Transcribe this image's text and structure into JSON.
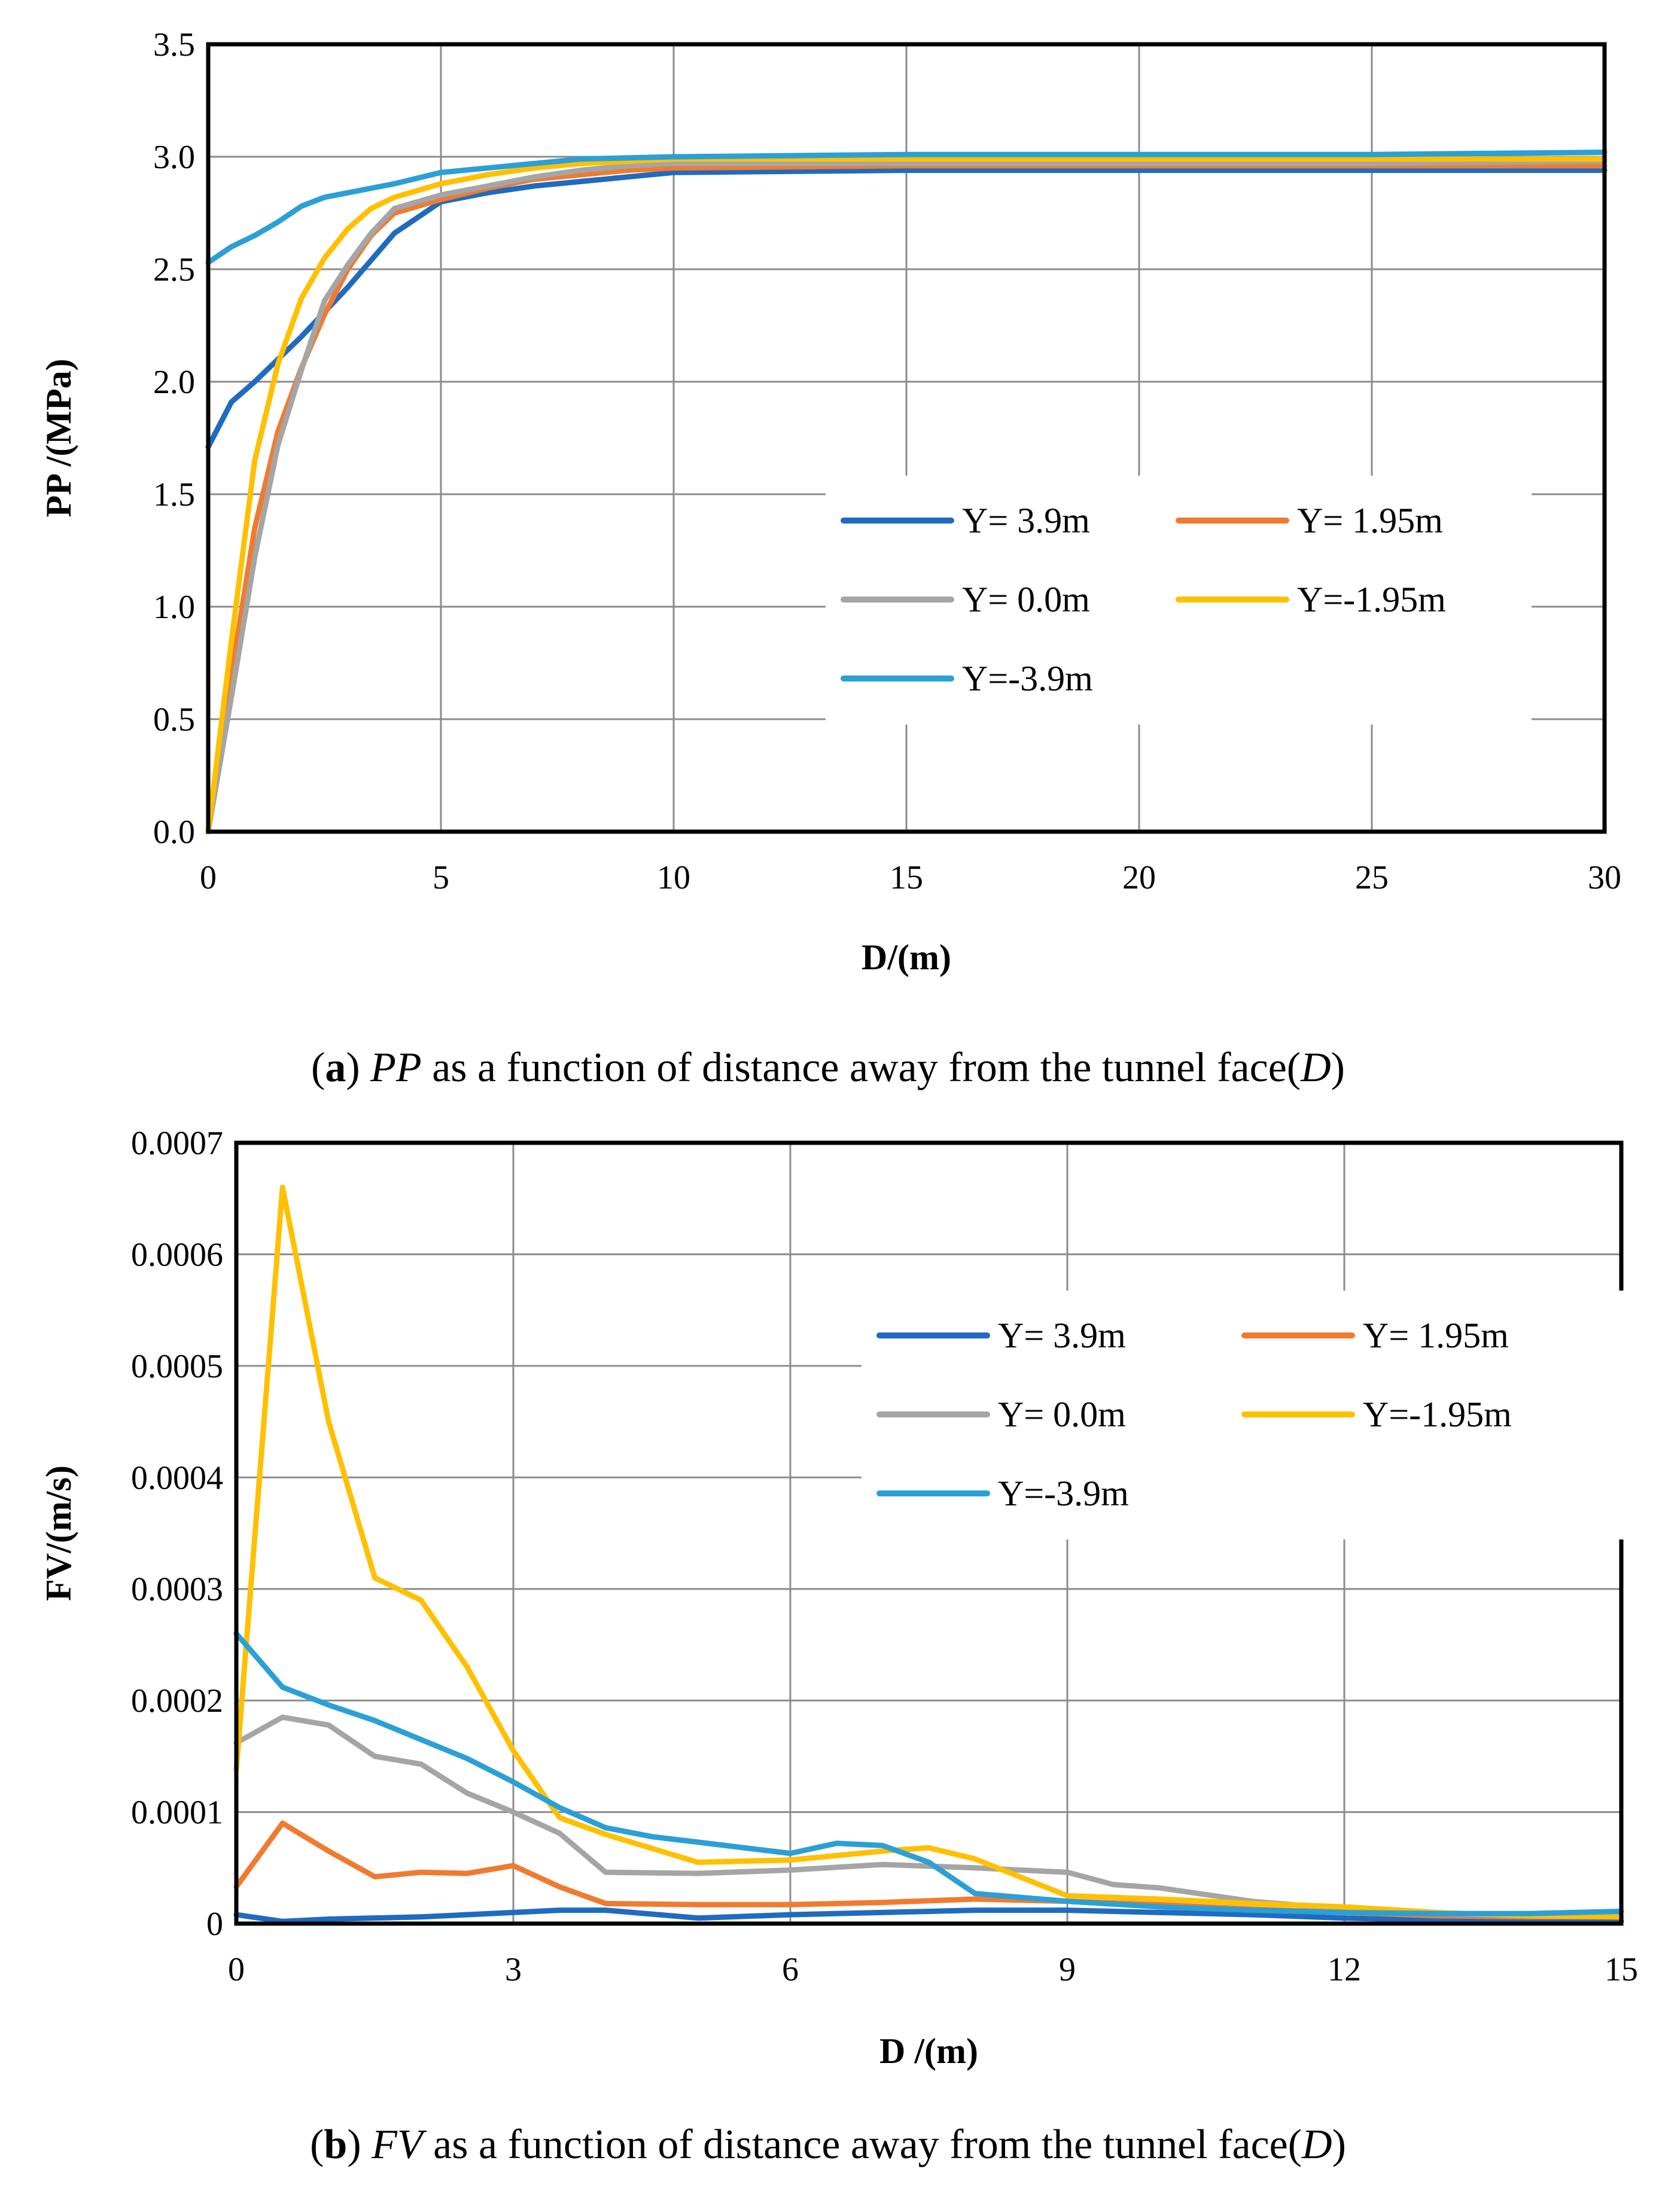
{
  "chart_data": [
    {
      "type": "line",
      "xlabel": "D/(m)",
      "ylabel": "PP /(MPa)",
      "xlim": [
        0,
        30
      ],
      "ylim": [
        0,
        3.5
      ],
      "xticks": [
        "0",
        "5",
        "10",
        "15",
        "20",
        "25",
        "30"
      ],
      "yticks": [
        "0.0",
        "0.5",
        "1.0",
        "1.5",
        "2.0",
        "2.5",
        "3.0",
        "3.5"
      ],
      "grid": true,
      "legend_position": "right-middle",
      "caption": {
        "letter": "a",
        "var": "PP",
        "text": " as a function of distance away from the tunnel face(",
        "var2": "D",
        "end": ")"
      },
      "series": [
        {
          "name": "Y= 3.9m",
          "color": "#1F6BC0",
          "x": [
            0,
            0.5,
            1,
            2,
            3,
            4,
            5,
            6,
            7,
            8,
            9,
            10,
            15,
            20,
            25,
            30
          ],
          "y": [
            1.71,
            1.91,
            2.0,
            2.2,
            2.42,
            2.66,
            2.8,
            2.84,
            2.87,
            2.89,
            2.91,
            2.93,
            2.94,
            2.94,
            2.94,
            2.94
          ]
        },
        {
          "name": "Y= 1.95m",
          "color": "#F07B30",
          "x": [
            0,
            0.5,
            1,
            1.5,
            2,
            2.5,
            3,
            3.5,
            4,
            5,
            6,
            7,
            8,
            9,
            10,
            15,
            20,
            25,
            30
          ],
          "y": [
            0.0,
            0.7,
            1.35,
            1.78,
            2.06,
            2.3,
            2.5,
            2.65,
            2.75,
            2.81,
            2.86,
            2.9,
            2.92,
            2.94,
            2.95,
            2.96,
            2.96,
            2.96,
            2.96
          ]
        },
        {
          "name": "Y= 0.0m",
          "color": "#A5A5A5",
          "x": [
            0,
            0.5,
            1,
            1.5,
            2,
            2.5,
            3,
            3.5,
            4,
            5,
            6,
            7,
            8,
            9,
            10,
            15,
            20,
            25,
            30
          ],
          "y": [
            0.0,
            0.6,
            1.22,
            1.72,
            2.05,
            2.36,
            2.52,
            2.66,
            2.77,
            2.83,
            2.87,
            2.91,
            2.94,
            2.96,
            2.97,
            2.97,
            2.97,
            2.97,
            2.98
          ]
        },
        {
          "name": "Y=-1.95m",
          "color": "#FFC000",
          "x": [
            0,
            0.5,
            1,
            1.5,
            2,
            2.5,
            3,
            3.5,
            4,
            5,
            6,
            7,
            8,
            9,
            10,
            15,
            20,
            25,
            30
          ],
          "y": [
            0.0,
            0.85,
            1.65,
            2.08,
            2.37,
            2.55,
            2.68,
            2.77,
            2.82,
            2.88,
            2.92,
            2.95,
            2.97,
            2.98,
            2.99,
            2.99,
            2.99,
            2.99,
            2.99
          ]
        },
        {
          "name": "Y=-3.9m",
          "color": "#2AA0D6",
          "x": [
            0,
            0.5,
            1,
            1.5,
            2,
            2.5,
            3,
            4,
            5,
            6,
            7,
            8,
            10,
            15,
            20,
            25,
            30
          ],
          "y": [
            2.53,
            2.6,
            2.65,
            2.71,
            2.78,
            2.82,
            2.84,
            2.88,
            2.93,
            2.95,
            2.97,
            2.99,
            3.0,
            3.01,
            3.01,
            3.01,
            3.02
          ]
        }
      ]
    },
    {
      "type": "line",
      "xlabel": "D /(m)",
      "ylabel": "FV/(m/s)",
      "xlim": [
        0,
        15
      ],
      "ylim": [
        0,
        0.0007
      ],
      "xticks": [
        "0",
        "3",
        "6",
        "9",
        "12",
        "15"
      ],
      "yticks": [
        "0",
        "0.0001",
        "0.0002",
        "0.0003",
        "0.0004",
        "0.0005",
        "0.0006",
        "0.0007"
      ],
      "grid": true,
      "legend_position": "top-right",
      "caption": {
        "letter": "b",
        "var": "FV",
        "text": " as a function of distance away from the tunnel face(",
        "var2": "D",
        "end": ")"
      },
      "series": [
        {
          "name": "Y= 3.9m",
          "color": "#1F6BC0",
          "x": [
            0,
            0.5,
            1,
            2,
            3,
            3.5,
            4,
            5,
            6,
            7,
            8,
            9,
            10,
            11,
            12,
            13,
            14,
            15
          ],
          "y": [
            8e-06,
            2e-06,
            4e-06,
            6e-06,
            1e-05,
            1.2e-05,
            1.2e-05,
            5e-06,
            8e-06,
            1e-05,
            1.2e-05,
            1.2e-05,
            1e-05,
            8e-06,
            5e-06,
            3e-06,
            2e-06,
            2e-06
          ]
        },
        {
          "name": "Y= 1.95m",
          "color": "#F07B30",
          "x": [
            0,
            0.5,
            1,
            1.5,
            2,
            2.5,
            3,
            3.5,
            4,
            5,
            6,
            7,
            8,
            9,
            10,
            11,
            12,
            13,
            14,
            15
          ],
          "y": [
            3.3e-05,
            9e-05,
            6.5e-05,
            4.2e-05,
            4.6e-05,
            4.5e-05,
            5.2e-05,
            3.3e-05,
            1.8e-05,
            1.7e-05,
            1.7e-05,
            1.9e-05,
            2.2e-05,
            2e-05,
            1.7e-05,
            1.3e-05,
            1e-05,
            7e-06,
            6e-06,
            6e-06
          ]
        },
        {
          "name": "Y= 0.0m",
          "color": "#A5A5A5",
          "x": [
            0,
            0.5,
            1,
            1.5,
            2,
            2.5,
            3,
            3.5,
            4,
            5,
            6,
            7,
            8,
            9,
            9.5,
            10,
            11,
            12,
            13,
            14,
            15
          ],
          "y": [
            0.000162,
            0.000185,
            0.000178,
            0.00015,
            0.000143,
            0.000117,
            0.0001,
            8.1e-05,
            4.6e-05,
            4.5e-05,
            4.8e-05,
            5.3e-05,
            5e-05,
            4.6e-05,
            3.5e-05,
            3.2e-05,
            2e-05,
            1.3e-05,
            9e-06,
            7e-06,
            6e-06
          ]
        },
        {
          "name": "Y=-1.95m",
          "color": "#FFC000",
          "x": [
            0,
            0.5,
            1,
            1.5,
            2,
            2.5,
            3,
            3.5,
            4,
            5,
            6,
            7,
            7.5,
            8,
            9,
            10,
            11,
            12,
            13,
            14,
            15
          ],
          "y": [
            0.000138,
            0.00066,
            0.00045,
            0.00031,
            0.00029,
            0.00023,
            0.000155,
            9.5e-05,
            8e-05,
            5.5e-05,
            5.7e-05,
            6.5e-05,
            6.8e-05,
            5.8e-05,
            2.5e-05,
            2.2e-05,
            1.8e-05,
            1.5e-05,
            1e-05,
            7e-06,
            6e-06
          ]
        },
        {
          "name": "Y=-3.9m",
          "color": "#2AA0D6",
          "x": [
            0,
            0.5,
            1,
            1.5,
            2,
            2.5,
            3,
            3.5,
            4,
            4.5,
            5,
            6,
            6.5,
            7,
            7.5,
            8,
            9,
            10,
            11,
            12,
            13,
            14,
            15
          ],
          "y": [
            0.00026,
            0.000212,
            0.000196,
            0.000182,
            0.000165,
            0.000148,
            0.000127,
            0.000104,
            8.6e-05,
            7.8e-05,
            7.3e-05,
            6.3e-05,
            7.2e-05,
            7e-05,
            5.5e-05,
            2.7e-05,
            2e-05,
            1.5e-05,
            1.2e-05,
            1e-05,
            9e-06,
            9e-06,
            1.1e-05
          ]
        }
      ]
    }
  ]
}
